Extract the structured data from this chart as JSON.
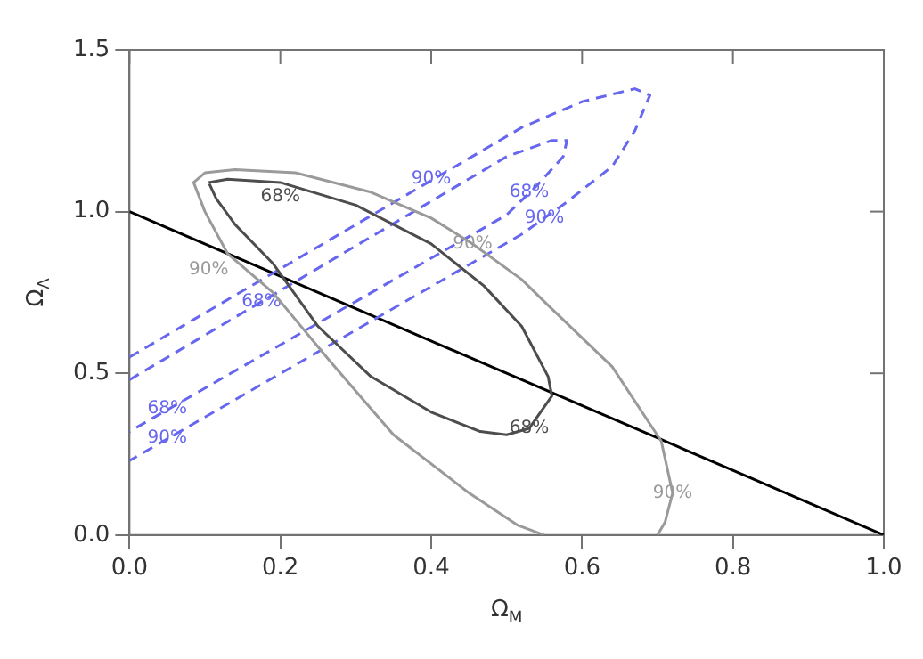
{
  "chart_data": {
    "type": "line",
    "xlabel": "Ω$_{M}$",
    "ylabel": "Ω$_{Λ}$",
    "xlim": [
      0,
      1
    ],
    "ylim": [
      0,
      1.5
    ],
    "xticks": [
      {
        "value": 0,
        "label": "0.0"
      },
      {
        "value": 0.2,
        "label": "0.2"
      },
      {
        "value": 0.4,
        "label": "0.4"
      },
      {
        "value": 0.6,
        "label": "0.6"
      },
      {
        "value": 0.8,
        "label": "0.8"
      },
      {
        "value": 1,
        "label": "1.0"
      }
    ],
    "yticks": [
      {
        "value": 0,
        "label": "0.0"
      },
      {
        "value": 0.5,
        "label": "0.5"
      },
      {
        "value": 1,
        "label": "1.0"
      },
      {
        "value": 1.5,
        "label": "1.5"
      }
    ],
    "grid": false,
    "legend": false,
    "marker": "none",
    "series": [
      {
        "color": "#4d4d4d",
        "line_style": "solid",
        "x": [
          0.105,
          0.13,
          0.2,
          0.3,
          0.4,
          0.47,
          0.52,
          0.555,
          0.56,
          0.53,
          0.5,
          0.465,
          0.4,
          0.32,
          0.25,
          0.19,
          0.14,
          0.115,
          0.106
        ],
        "values": [
          1.09,
          1.1,
          1.09,
          1.02,
          0.9,
          0.77,
          0.645,
          0.49,
          0.43,
          0.33,
          0.31,
          0.32,
          0.38,
          0.49,
          0.645,
          0.84,
          0.96,
          1.04,
          1.085
        ]
      },
      {
        "color": "#9a9a9a",
        "line_style": "solid",
        "x": [
          0.55,
          0.515,
          0.45,
          0.35,
          0.265,
          0.19,
          0.13,
          0.1,
          0.085,
          0.1,
          0.14,
          0.22,
          0.32,
          0.4,
          0.455,
          0.52,
          0.555,
          0.64,
          0.705,
          0.72,
          0.71,
          0.7
        ],
        "values": [
          0,
          0.03,
          0.13,
          0.31,
          0.54,
          0.75,
          0.87,
          1,
          1.09,
          1.12,
          1.13,
          1.12,
          1.06,
          0.98,
          0.9,
          0.79,
          0.71,
          0.52,
          0.29,
          0.13,
          0.04,
          0
        ]
      },
      {
        "color": "#6666ee",
        "line_style": "dashed",
        "x": [
          0,
          0.5,
          0.56,
          0.58,
          0.575,
          0.54,
          0.5,
          0
        ],
        "values": [
          0.48,
          1.17,
          1.22,
          1.22,
          1.17,
          1.08,
          0.99,
          0.32
        ]
      },
      {
        "color": "#6666ee",
        "line_style": "dashed",
        "x": [
          0,
          0.52,
          0.6,
          0.67,
          0.69,
          0.67,
          0.64,
          0.58,
          0.52,
          0
        ],
        "values": [
          0.55,
          1.26,
          1.34,
          1.38,
          1.36,
          1.25,
          1.14,
          1.03,
          0.93,
          0.23
        ]
      },
      {
        "color": "#000000",
        "line_style": "solid",
        "x": [
          0,
          1
        ],
        "values": [
          1,
          0
        ]
      }
    ],
    "annotations": [
      {
        "text": "68%",
        "x": 0.2,
        "y": 1.045
      },
      {
        "text": "90%",
        "x": 0.455,
        "y": 0.9
      },
      {
        "text": "90%",
        "x": 0.105,
        "y": 0.82
      },
      {
        "text": "68%",
        "x": 0.53,
        "y": 0.33
      },
      {
        "text": "90%",
        "x": 0.72,
        "y": 0.13
      },
      {
        "text": "90%",
        "x": 0.4,
        "y": 1.1
      },
      {
        "text": "68%",
        "x": 0.175,
        "y": 0.72
      },
      {
        "text": "68%",
        "x": 0.53,
        "y": 1.06
      },
      {
        "text": "90%",
        "x": 0.55,
        "y": 0.98
      },
      {
        "text": "68%",
        "x": 0.05,
        "y": 0.39
      },
      {
        "text": "90%",
        "x": 0.05,
        "y": 0.3
      }
    ]
  }
}
